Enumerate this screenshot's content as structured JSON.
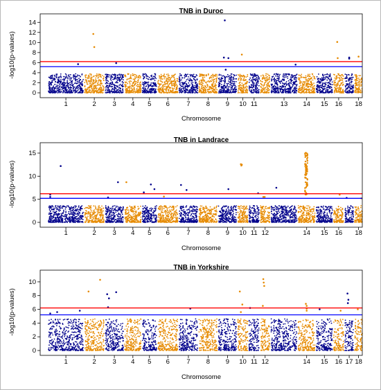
{
  "chart_data": [
    {
      "type": "scatter",
      "title": "TNB in Duroc",
      "xlabel": "Chromosome",
      "ylabel": "-log10(p-values)",
      "ylim": [
        0,
        15
      ],
      "yticks": [
        0,
        2,
        4,
        6,
        8,
        10,
        12,
        14
      ],
      "chromosome_labels": [
        "1",
        "2",
        "3",
        "4",
        "5",
        "6",
        "7",
        "8",
        "9",
        "10",
        "11",
        "13",
        "14",
        "15",
        "16",
        "18"
      ],
      "chromosomes": [
        "1",
        "2",
        "3",
        "4",
        "5",
        "6",
        "7",
        "8",
        "9",
        "10",
        "11",
        "12",
        "13",
        "14",
        "15",
        "16",
        "17",
        "18"
      ],
      "thresholds": {
        "genome_wide": 6.2,
        "suggestive": 5.2
      },
      "background_max": 3.8,
      "peaks": [
        {
          "chromosome": "1",
          "pos": 0.85,
          "y": 5.7
        },
        {
          "chromosome": "2",
          "pos": 0.45,
          "y": 11.7
        },
        {
          "chromosome": "2",
          "pos": 0.5,
          "y": 9.1
        },
        {
          "chromosome": "3",
          "pos": 0.6,
          "y": 5.9
        },
        {
          "chromosome": "9",
          "pos": 0.35,
          "y": 14.4
        },
        {
          "chromosome": "9",
          "pos": 0.3,
          "y": 7.0
        },
        {
          "chromosome": "9",
          "pos": 0.55,
          "y": 6.9
        },
        {
          "chromosome": "9",
          "pos": 0.4,
          "y": 4.6
        },
        {
          "chromosome": "10",
          "pos": 0.4,
          "y": 7.6
        },
        {
          "chromosome": "13",
          "pos": 0.95,
          "y": 5.6
        },
        {
          "chromosome": "16",
          "pos": 0.35,
          "y": 10.1
        },
        {
          "chromosome": "16",
          "pos": 0.4,
          "y": 6.9
        },
        {
          "chromosome": "17",
          "pos": 0.5,
          "y": 7.0
        },
        {
          "chromosome": "17",
          "pos": 0.5,
          "y": 6.8
        },
        {
          "chromosome": "18",
          "pos": 0.5,
          "y": 7.2
        }
      ]
    },
    {
      "type": "scatter",
      "title": "TNB in Landrace",
      "xlabel": "Chromosome",
      "ylabel": "-log10(p-values)",
      "ylim": [
        0,
        16.5
      ],
      "yticks": [
        0,
        5,
        10,
        15
      ],
      "chromosome_labels": [
        "1",
        "2",
        "3",
        "4",
        "5",
        "6",
        "7",
        "8",
        "9",
        "10",
        "11",
        "12",
        "14",
        "15",
        "16",
        "18"
      ],
      "chromosomes": [
        "1",
        "2",
        "3",
        "4",
        "5",
        "6",
        "7",
        "8",
        "9",
        "10",
        "11",
        "12",
        "13",
        "14",
        "15",
        "16",
        "17",
        "18"
      ],
      "thresholds": {
        "genome_wide": 6.2,
        "suggestive": 5.2
      },
      "background_max": 3.6,
      "peaks": [
        {
          "chromosome": "1",
          "pos": 0.05,
          "y": 6.0
        },
        {
          "chromosome": "1",
          "pos": 0.05,
          "y": 5.5
        },
        {
          "chromosome": "1",
          "pos": 0.35,
          "y": 12.2
        },
        {
          "chromosome": "3",
          "pos": 0.15,
          "y": 5.4
        },
        {
          "chromosome": "3",
          "pos": 0.7,
          "y": 8.7
        },
        {
          "chromosome": "4",
          "pos": 0.1,
          "y": 8.7
        },
        {
          "chromosome": "5",
          "pos": 0.1,
          "y": 6.5
        },
        {
          "chromosome": "5",
          "pos": 0.6,
          "y": 8.2
        },
        {
          "chromosome": "5",
          "pos": 0.85,
          "y": 7.2
        },
        {
          "chromosome": "6",
          "pos": 0.3,
          "y": 5.6
        },
        {
          "chromosome": "7",
          "pos": 0.1,
          "y": 8.1
        },
        {
          "chromosome": "7",
          "pos": 0.4,
          "y": 7.0
        },
        {
          "chromosome": "9",
          "pos": 0.55,
          "y": 7.2
        },
        {
          "chromosome": "10",
          "pos": 0.3,
          "y": 12.6
        },
        {
          "chromosome": "10",
          "pos": 0.35,
          "y": 12.3
        },
        {
          "chromosome": "10",
          "pos": 0.4,
          "y": 12.5
        },
        {
          "chromosome": "11",
          "pos": 0.9,
          "y": 6.3
        },
        {
          "chromosome": "12",
          "pos": 0.3,
          "y": 5.5
        },
        {
          "chromosome": "12",
          "pos": 0.45,
          "y": 5.5
        },
        {
          "chromosome": "13",
          "pos": 0.2,
          "y": 7.5
        },
        {
          "chromosome": "16",
          "pos": 0.6,
          "y": 6.0
        },
        {
          "chromosome": "17",
          "pos": 0.2,
          "y": 5.3
        },
        {
          "chromosome": "18",
          "pos": 0.85,
          "y": 5.2
        }
      ],
      "peak_cluster": {
        "chromosome": "14",
        "pos_range": [
          0.4,
          0.55
        ],
        "y_range": [
          6.0,
          15.1
        ]
      }
    },
    {
      "type": "scatter",
      "title": "TNB in Yorkshire",
      "xlabel": "Chromosome",
      "ylabel": "-log10(p-values)",
      "ylim": [
        0,
        11.2
      ],
      "yticks": [
        0,
        2,
        4,
        6,
        8,
        10
      ],
      "chromosome_labels": [
        "1",
        "2",
        "3",
        "4",
        "5",
        "6",
        "7",
        "8",
        "9",
        "10",
        "11",
        "12",
        "14",
        "15",
        "16",
        "17",
        "18"
      ],
      "chromosomes": [
        "1",
        "2",
        "3",
        "4",
        "5",
        "6",
        "7",
        "8",
        "9",
        "10",
        "11",
        "12",
        "13",
        "14",
        "15",
        "16",
        "17",
        "18"
      ],
      "thresholds": {
        "genome_wide": 6.2,
        "suggestive": 5.2
      },
      "background_max": 4.6,
      "peaks": [
        {
          "chromosome": "1",
          "pos": 0.05,
          "y": 5.4
        },
        {
          "chromosome": "1",
          "pos": 0.25,
          "y": 5.6
        },
        {
          "chromosome": "1",
          "pos": 0.9,
          "y": 5.8
        },
        {
          "chromosome": "2",
          "pos": 0.2,
          "y": 8.6
        },
        {
          "chromosome": "2",
          "pos": 0.8,
          "y": 10.3
        },
        {
          "chromosome": "3",
          "pos": 0.1,
          "y": 8.2
        },
        {
          "chromosome": "3",
          "pos": 0.2,
          "y": 7.6
        },
        {
          "chromosome": "3",
          "pos": 0.15,
          "y": 6.3
        },
        {
          "chromosome": "3",
          "pos": 0.6,
          "y": 8.5
        },
        {
          "chromosome": "7",
          "pos": 0.6,
          "y": 6.1
        },
        {
          "chromosome": "10",
          "pos": 0.2,
          "y": 8.6
        },
        {
          "chromosome": "10",
          "pos": 0.45,
          "y": 6.7
        },
        {
          "chromosome": "10",
          "pos": 0.3,
          "y": 5.6
        },
        {
          "chromosome": "11",
          "pos": 0.1,
          "y": 6.2
        },
        {
          "chromosome": "12",
          "pos": 0.3,
          "y": 10.4
        },
        {
          "chromosome": "12",
          "pos": 0.35,
          "y": 9.9
        },
        {
          "chromosome": "12",
          "pos": 0.4,
          "y": 9.4
        },
        {
          "chromosome": "12",
          "pos": 0.25,
          "y": 6.5
        },
        {
          "chromosome": "14",
          "pos": 0.45,
          "y": 6.8
        },
        {
          "chromosome": "14",
          "pos": 0.5,
          "y": 6.5
        },
        {
          "chromosome": "14",
          "pos": 0.5,
          "y": 6.1
        },
        {
          "chromosome": "14",
          "pos": 0.5,
          "y": 5.8
        },
        {
          "chromosome": "15",
          "pos": 0.2,
          "y": 6.0
        },
        {
          "chromosome": "16",
          "pos": 0.7,
          "y": 5.8
        },
        {
          "chromosome": "17",
          "pos": 0.3,
          "y": 8.3
        },
        {
          "chromosome": "17",
          "pos": 0.4,
          "y": 7.4
        },
        {
          "chromosome": "17",
          "pos": 0.35,
          "y": 6.9
        },
        {
          "chromosome": "18",
          "pos": 0.4,
          "y": 6.0
        }
      ]
    }
  ],
  "colors": {
    "odd_chromosome": "#00008b",
    "even_chromosome": "#e68a00",
    "genome_wide_line": "#ff0000",
    "suggestive_line": "#0000ff",
    "axis": "#000000",
    "frame": "#b8b8b8"
  }
}
